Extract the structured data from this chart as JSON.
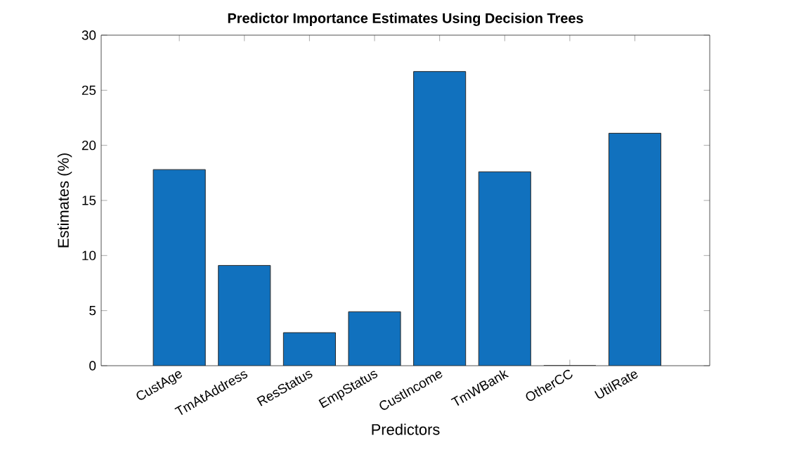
{
  "chart_data": {
    "type": "bar",
    "title": "Predictor Importance Estimates Using Decision Trees",
    "xlabel": "Predictors",
    "ylabel": "Estimates (%)",
    "categories": [
      "CustAge",
      "TmAtAddress",
      "ResStatus",
      "EmpStatus",
      "CustIncome",
      "TmWBank",
      "OtherCC",
      "UtilRate"
    ],
    "values": [
      17.8,
      9.1,
      3,
      4.9,
      26.7,
      17.6,
      0,
      21.1
    ],
    "color": "#1171be",
    "ylim": [
      0,
      30
    ],
    "yticks": [
      0,
      5,
      10,
      15,
      20,
      25,
      30
    ]
  }
}
